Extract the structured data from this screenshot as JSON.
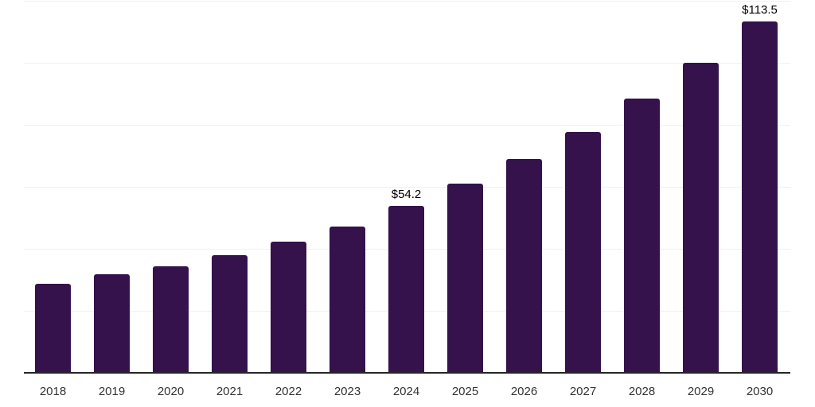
{
  "chart_data": {
    "type": "bar",
    "title": "",
    "xlabel": "",
    "ylabel": "",
    "categories": [
      "2018",
      "2019",
      "2020",
      "2021",
      "2022",
      "2023",
      "2024",
      "2025",
      "2026",
      "2027",
      "2028",
      "2029",
      "2030"
    ],
    "values": [
      29.0,
      32.1,
      34.6,
      38.2,
      42.6,
      47.4,
      54.2,
      61.3,
      69.2,
      77.9,
      88.7,
      100.2,
      113.5
    ],
    "labeled_values": {
      "2024": "$54.2",
      "2030": "$113.5"
    },
    "value_prefix": "$",
    "ylim": [
      0,
      120
    ],
    "grid": {
      "visible": true,
      "step": 20,
      "color": "#f0f0f0"
    },
    "legend": null,
    "colors": {
      "bar": "#35124b",
      "axis": "#262626",
      "value_label": "#000000",
      "tick_label": "#333333",
      "background": "#ffffff"
    }
  }
}
